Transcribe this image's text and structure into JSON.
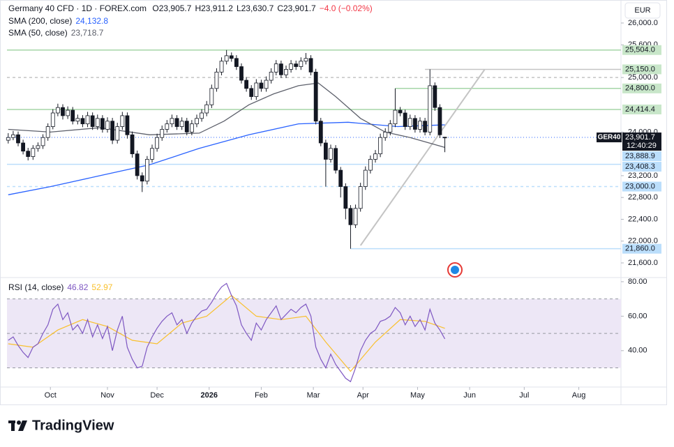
{
  "chart_data": [
    {
      "type": "candlestick",
      "title": "Germany 40 CFD · 1D · FOREX.com",
      "ohlc_labels": [
        "O23,905.7",
        "H23,911.2",
        "L23,630.7",
        "C23,901.7",
        "−4.0 (−0.02%)"
      ],
      "symbol": "GER40",
      "countdown": "12:40:29",
      "currency": "EUR",
      "up_color": "#ffffff",
      "down_color": "#131722",
      "wick_color": "#131722",
      "xlim": [
        -17.5,
        230
      ],
      "ylim": [
        21370,
        26166
      ],
      "yticks": [
        {
          "value": 26000,
          "label": "26,000.0"
        },
        {
          "value": 25600,
          "label": "25,600.0"
        },
        {
          "value": 25000,
          "label": "25,000.0"
        },
        {
          "value": 24000,
          "label": "24,000.0"
        },
        {
          "value": 23200,
          "label": "23,200.0"
        },
        {
          "value": 22800,
          "label": "22,800.0"
        },
        {
          "value": 22400,
          "label": "22,400.0"
        },
        {
          "value": 22000,
          "label": "22,000.0"
        },
        {
          "value": 21600,
          "label": "21,600.0"
        }
      ],
      "grid": false,
      "x": [
        -17,
        -15,
        -13,
        -11,
        -9,
        -7,
        -5,
        -3,
        -1,
        1,
        3,
        5,
        7,
        9,
        11,
        13,
        15,
        17,
        19,
        21,
        23,
        25,
        27,
        29,
        31,
        33,
        35,
        37,
        39,
        41,
        43,
        45,
        47,
        49,
        51,
        53,
        55,
        57,
        59,
        61,
        63,
        65,
        67,
        69,
        71,
        73,
        75,
        77,
        79,
        81,
        83,
        85,
        87,
        89,
        91,
        93,
        95,
        97,
        99,
        101,
        103,
        105,
        107,
        109,
        111,
        113,
        115,
        117,
        119,
        121,
        123,
        125,
        127,
        129,
        131,
        133,
        135,
        137,
        139,
        141,
        143,
        145,
        147,
        149,
        151,
        153,
        155,
        157,
        159
      ],
      "candles": [
        [
          23850,
          23980,
          23790,
          23900
        ],
        [
          23900,
          24020,
          23850,
          23950
        ],
        [
          23950,
          24010,
          23740,
          23800
        ],
        [
          23800,
          23860,
          23590,
          23650
        ],
        [
          23650,
          23710,
          23480,
          23550
        ],
        [
          23550,
          23760,
          23490,
          23700
        ],
        [
          23700,
          23810,
          23640,
          23750
        ],
        [
          23750,
          23960,
          23690,
          23900
        ],
        [
          23900,
          24160,
          23840,
          24100
        ],
        [
          24100,
          24420,
          24050,
          24350
        ],
        [
          24350,
          24520,
          24290,
          24450
        ],
        [
          24450,
          24510,
          24230,
          24300
        ],
        [
          24300,
          24470,
          24240,
          24400
        ],
        [
          24400,
          24460,
          24140,
          24200
        ],
        [
          24200,
          24320,
          24140,
          24250
        ],
        [
          24250,
          24310,
          24090,
          24150
        ],
        [
          24150,
          24370,
          24090,
          24300
        ],
        [
          24300,
          24360,
          24040,
          24100
        ],
        [
          24100,
          24320,
          24040,
          24250
        ],
        [
          24250,
          24310,
          23990,
          24050
        ],
        [
          24050,
          24270,
          23990,
          24200
        ],
        [
          24200,
          24260,
          23780,
          23850
        ],
        [
          23850,
          24170,
          23790,
          24100
        ],
        [
          24100,
          24370,
          24040,
          24300
        ],
        [
          24300,
          24360,
          23880,
          23950
        ],
        [
          23950,
          24010,
          23530,
          23600
        ],
        [
          23600,
          23660,
          23130,
          23200
        ],
        [
          23200,
          23260,
          22900,
          23100
        ],
        [
          23100,
          23560,
          23040,
          23500
        ],
        [
          23500,
          23770,
          23440,
          23700
        ],
        [
          23700,
          23970,
          23640,
          23900
        ],
        [
          23900,
          24120,
          23840,
          24050
        ],
        [
          24050,
          24220,
          23990,
          24150
        ],
        [
          24150,
          24320,
          24090,
          24250
        ],
        [
          24250,
          24310,
          24040,
          24100
        ],
        [
          24100,
          24270,
          24040,
          24200
        ],
        [
          24200,
          24260,
          23940,
          24000
        ],
        [
          24000,
          24220,
          23940,
          24150
        ],
        [
          24150,
          24320,
          24090,
          24250
        ],
        [
          24250,
          24420,
          24190,
          24350
        ],
        [
          24350,
          24570,
          24290,
          24500
        ],
        [
          24500,
          24870,
          24440,
          24800
        ],
        [
          24800,
          25170,
          24740,
          25100
        ],
        [
          25100,
          25370,
          25040,
          25300
        ],
        [
          25300,
          25504,
          25240,
          25400
        ],
        [
          25400,
          25460,
          25290,
          25350
        ],
        [
          25350,
          25410,
          25140,
          25200
        ],
        [
          25200,
          25260,
          24890,
          24950
        ],
        [
          24950,
          25010,
          24740,
          24800
        ],
        [
          24800,
          24860,
          24590,
          24650
        ],
        [
          24650,
          24970,
          24590,
          24900
        ],
        [
          24900,
          24960,
          24740,
          24800
        ],
        [
          24800,
          25020,
          24740,
          24950
        ],
        [
          24950,
          25170,
          24890,
          25100
        ],
        [
          25100,
          25320,
          25040,
          25250
        ],
        [
          25250,
          25310,
          24990,
          25050
        ],
        [
          25050,
          25220,
          24990,
          25150
        ],
        [
          25150,
          25320,
          25090,
          25250
        ],
        [
          25250,
          25310,
          25140,
          25200
        ],
        [
          25200,
          25370,
          25140,
          25300
        ],
        [
          25300,
          25450,
          25240,
          25350
        ],
        [
          25350,
          25410,
          25040,
          25100
        ],
        [
          25100,
          25160,
          24140,
          24200
        ],
        [
          24200,
          24260,
          23740,
          23800
        ],
        [
          23800,
          23860,
          23000,
          23500
        ],
        [
          23500,
          23770,
          23440,
          23700
        ],
        [
          23700,
          23760,
          23240,
          23300
        ],
        [
          23300,
          23360,
          22800,
          23000
        ],
        [
          23000,
          23060,
          22400,
          22600
        ],
        [
          22600,
          22660,
          21860,
          22300
        ],
        [
          22300,
          22670,
          22240,
          22600
        ],
        [
          22600,
          23070,
          22540,
          23000
        ],
        [
          23000,
          23370,
          22940,
          23300
        ],
        [
          23300,
          23570,
          23240,
          23500
        ],
        [
          23500,
          23670,
          23440,
          23600
        ],
        [
          23600,
          23970,
          23540,
          23900
        ],
        [
          23900,
          24070,
          23840,
          24000
        ],
        [
          24000,
          24220,
          23940,
          24150
        ],
        [
          24150,
          24800,
          24090,
          24400
        ],
        [
          24400,
          24460,
          24290,
          24350
        ],
        [
          24350,
          24410,
          24040,
          24100
        ],
        [
          24100,
          24320,
          24040,
          24250
        ],
        [
          24250,
          24310,
          23990,
          24050
        ],
        [
          24050,
          24270,
          23990,
          24200
        ],
        [
          24200,
          24260,
          23940,
          24000
        ],
        [
          24000,
          25150,
          23940,
          24850
        ],
        [
          24850,
          24910,
          24390,
          24450
        ],
        [
          24450,
          24510,
          23890,
          23950
        ],
        [
          23905.7,
          23911.2,
          23630.7,
          23901.7
        ]
      ],
      "series": [
        {
          "name": "SMA (200, close)",
          "value_label": "24,132.8",
          "color": "#2962ff",
          "x": [
            -17,
            0,
            20,
            40,
            60,
            80,
            100,
            120,
            140,
            159
          ],
          "values": [
            22850,
            23000,
            23200,
            23400,
            23700,
            23950,
            24150,
            24180,
            24100,
            24132.8
          ]
        },
        {
          "name": "SMA (50, close)",
          "value_label": "23,718.7",
          "color": "#5d606b",
          "x": [
            -17,
            0,
            20,
            40,
            60,
            70,
            80,
            90,
            100,
            108,
            115,
            125,
            135,
            145,
            159
          ],
          "values": [
            24050,
            24000,
            24080,
            23950,
            23980,
            24200,
            24500,
            24700,
            24850,
            24900,
            24650,
            24250,
            24000,
            23900,
            23718.7
          ]
        }
      ],
      "trendline": {
        "color": "#c4c4c4",
        "x": [
          125,
          175
        ],
        "values": [
          21920,
          25143
        ]
      },
      "levels": [
        {
          "value": 25504,
          "label": "25,504.0",
          "color": "#a5d6a7",
          "box": "#c8e6c9",
          "style": "solid",
          "from": -17.5
        },
        {
          "value": 25150,
          "label": "25,150.0",
          "color": "#c4c4c4",
          "box": "#c8e6c9",
          "style": "solid",
          "from": 151
        },
        {
          "value": 25000,
          "color": "#c4c4c4",
          "style": "dashed",
          "from": -17.5
        },
        {
          "value": 24800,
          "label": "24,800.0",
          "color": "#a5d6a7",
          "box": "#c8e6c9",
          "style": "solid",
          "from": 139
        },
        {
          "value": 24414.4,
          "label": "24,414.4",
          "color": "#a5d6a7",
          "box": "#c8e6c9",
          "style": "solid",
          "from": -17.5
        },
        {
          "value": 23901.7,
          "label": "23,901.7",
          "color": "#2962ff",
          "box": "#131722",
          "style": "dotted",
          "from": -17.5,
          "current": true
        },
        {
          "value": 23888.9,
          "label": "23,888.9",
          "box": "#bbdefb"
        },
        {
          "value": 23408.3,
          "label": "23,408.3",
          "color": "#bbdefb",
          "box": "#bbdefb",
          "style": "solid",
          "from": -17.5
        },
        {
          "value": 23000,
          "label": "23,000.0",
          "color": "#bbdefb",
          "box": "#bbdefb",
          "style": "dashed",
          "from": -17.5
        },
        {
          "value": 21860,
          "label": "21,860.0",
          "color": "#bbdefb",
          "box": "#bbdefb",
          "style": "solid",
          "from": 121
        }
      ]
    },
    {
      "type": "line",
      "title": "RSI (14, close)",
      "xlim": [
        -17.5,
        230
      ],
      "ylim": [
        18.9,
        81.6
      ],
      "yticks": [
        {
          "value": 80,
          "label": "80.00"
        },
        {
          "value": 60,
          "label": "60.00"
        },
        {
          "value": 40,
          "label": "40.00"
        }
      ],
      "hlines": [
        70,
        50,
        30
      ],
      "band_color": "#ede7f6",
      "xticks": [
        {
          "value": 0,
          "label": "Oct"
        },
        {
          "value": 23,
          "label": "Nov"
        },
        {
          "value": 43,
          "label": "Dec"
        },
        {
          "value": 64,
          "label": "2026",
          "bold": true
        },
        {
          "value": 85,
          "label": "Feb"
        },
        {
          "value": 106,
          "label": "Mar"
        },
        {
          "value": 126,
          "label": "Apr"
        },
        {
          "value": 148,
          "label": "May"
        },
        {
          "value": 169,
          "label": "Jun"
        },
        {
          "value": 191,
          "label": "Jul"
        },
        {
          "value": 213,
          "label": "Aug"
        }
      ],
      "series": [
        {
          "value_label": "46.82",
          "color": "#7e57c2",
          "x": [
            -17,
            -15,
            -13,
            -11,
            -9,
            -7,
            -5,
            -3,
            -1,
            1,
            3,
            5,
            7,
            9,
            11,
            13,
            15,
            17,
            19,
            21,
            23,
            25,
            27,
            29,
            31,
            33,
            35,
            37,
            39,
            41,
            43,
            45,
            47,
            49,
            51,
            53,
            55,
            57,
            59,
            61,
            63,
            65,
            67,
            69,
            71,
            73,
            75,
            77,
            79,
            81,
            83,
            85,
            87,
            89,
            91,
            93,
            95,
            97,
            99,
            101,
            103,
            105,
            107,
            109,
            111,
            113,
            115,
            117,
            119,
            121,
            123,
            125,
            127,
            129,
            131,
            133,
            135,
            137,
            139,
            141,
            143,
            145,
            147,
            149,
            151,
            153,
            155,
            157,
            159
          ],
          "values": [
            46,
            48,
            43,
            39,
            36,
            42,
            44,
            50,
            55,
            64,
            67,
            58,
            62,
            52,
            55,
            50,
            58,
            48,
            55,
            47,
            54,
            40,
            52,
            60,
            42,
            35,
            30,
            31,
            42,
            48,
            53,
            57,
            60,
            62,
            55,
            58,
            50,
            56,
            60,
            63,
            64,
            68,
            73,
            77,
            79,
            72,
            66,
            55,
            50,
            46,
            56,
            52,
            58,
            62,
            66,
            58,
            61,
            64,
            62,
            65,
            67,
            60,
            42,
            35,
            30,
            38,
            32,
            28,
            24,
            22,
            30,
            40,
            46,
            50,
            52,
            57,
            58,
            60,
            65,
            62,
            55,
            60,
            54,
            58,
            52,
            64,
            56,
            52,
            46.82
          ]
        },
        {
          "value_label": "52.97",
          "color": "#f9c02d",
          "x": [
            -17,
            -7,
            3,
            13,
            23,
            33,
            43,
            53,
            63,
            73,
            83,
            93,
            103,
            111,
            121,
            131,
            141,
            151,
            159
          ],
          "values": [
            44,
            42,
            52,
            58,
            54,
            46,
            44,
            56,
            60,
            72,
            60,
            58,
            60,
            45,
            28,
            45,
            58,
            57,
            52.97
          ]
        }
      ]
    }
  ],
  "brand": "TradingView"
}
